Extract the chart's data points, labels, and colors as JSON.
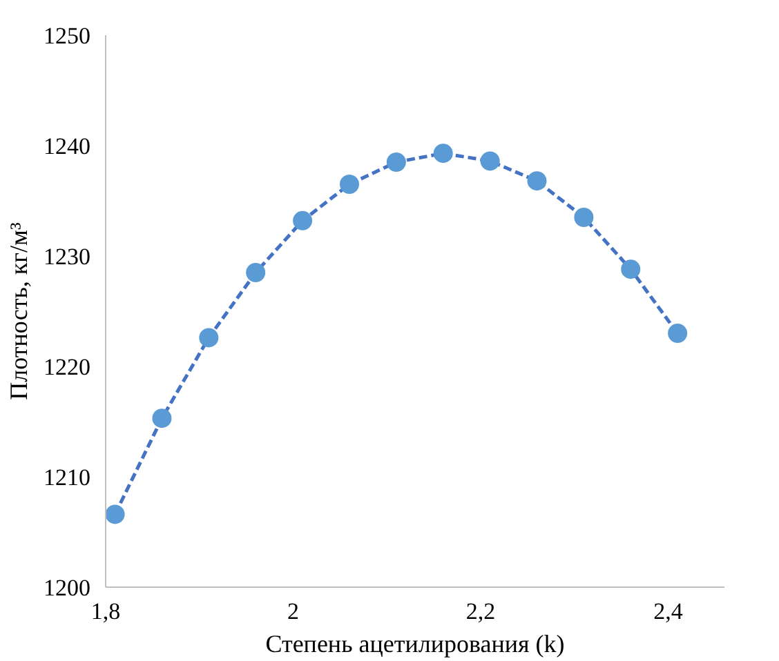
{
  "chart_data": {
    "type": "scatter",
    "xlabel": "Степень ацетилирования (k)",
    "ylabel": "Плотность, кг/м³",
    "xlim": [
      1.8,
      2.46
    ],
    "ylim": [
      1200,
      1250
    ],
    "xticks": [
      {
        "value": 1.8,
        "label": "1,8"
      },
      2,
      {
        "value": 2.2,
        "label": "2,2"
      },
      {
        "value": 2.4,
        "label": "2,4"
      }
    ],
    "yticks": [
      1200,
      1210,
      1220,
      1230,
      1240,
      1250
    ],
    "grid": false,
    "series": [
      {
        "type": "line",
        "color": "#4472c4",
        "line_style": "dashed",
        "marker": "none",
        "x": [
          1.81,
          1.86,
          1.91,
          1.96,
          2.01,
          2.06,
          2.11,
          2.16,
          2.21,
          2.26,
          2.31,
          2.36,
          2.41
        ],
        "values": [
          1206.6,
          1215.3,
          1222.6,
          1228.5,
          1233.2,
          1236.5,
          1238.5,
          1239.3,
          1238.6,
          1236.8,
          1233.5,
          1228.8,
          1223.0
        ]
      },
      {
        "color": "#5b9bd5",
        "marker": "circle",
        "x": [
          1.81,
          1.86,
          1.91,
          1.96,
          2.01,
          2.06,
          2.11,
          2.16,
          2.21,
          2.26,
          2.31,
          2.36,
          2.41
        ],
        "values": [
          1206.6,
          1215.3,
          1222.6,
          1228.5,
          1233.2,
          1236.5,
          1238.5,
          1239.3,
          1238.6,
          1236.8,
          1233.5,
          1228.8,
          1223.0
        ]
      }
    ]
  }
}
